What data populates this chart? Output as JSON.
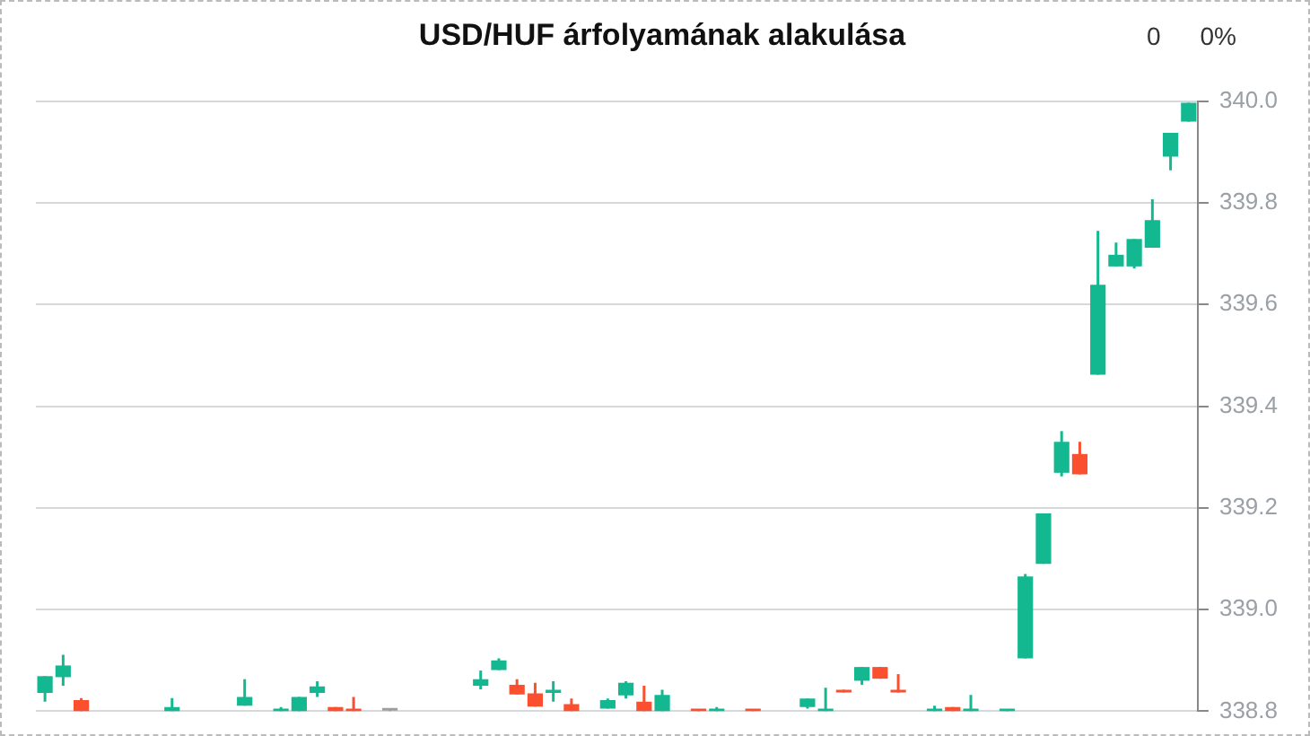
{
  "chart_data": {
    "type": "candlestick",
    "title": "USD/HUF árfolyamának alakulása",
    "annotations": [
      "0",
      "0%"
    ],
    "categories": [
      null,
      null,
      null,
      null,
      null,
      null,
      null,
      null,
      null,
      null,
      null,
      null,
      null,
      null,
      null,
      null,
      null,
      null,
      null,
      null,
      null,
      null,
      null,
      null,
      null,
      null,
      null,
      null,
      null,
      null,
      null,
      null,
      null,
      null,
      null,
      null,
      null,
      null,
      null,
      null,
      null,
      null,
      null,
      null,
      null,
      null,
      null,
      null,
      null,
      null,
      null,
      null,
      null,
      null,
      null,
      null,
      null,
      null,
      null,
      null,
      null,
      null,
      null,
      null
    ],
    "ohlc": [
      [
        338.836,
        338.869,
        338.819,
        338.869
      ],
      [
        338.867,
        338.911,
        338.85,
        338.89
      ],
      [
        338.822,
        338.826,
        338.8,
        338.8
      ],
      null,
      null,
      null,
      null,
      [
        338.8,
        338.826,
        338.8,
        338.808
      ],
      null,
      null,
      null,
      [
        338.811,
        338.863,
        338.811,
        338.828
      ],
      null,
      [
        338.8,
        338.808,
        338.8,
        338.801
      ],
      [
        338.8,
        338.828,
        338.8,
        338.828
      ],
      [
        338.836,
        338.859,
        338.828,
        338.849
      ],
      [
        338.808,
        338.808,
        338.8,
        338.8
      ],
      [
        338.805,
        338.828,
        338.8,
        338.8
      ],
      null,
      [
        338.801,
        338.806,
        338.8,
        338.801
      ],
      null,
      null,
      null,
      null,
      [
        338.85,
        338.88,
        338.843,
        338.863
      ],
      [
        338.881,
        338.904,
        338.881,
        338.9
      ],
      [
        338.852,
        338.863,
        338.833,
        338.833
      ],
      [
        338.835,
        338.856,
        338.809,
        338.809
      ],
      [
        338.836,
        338.859,
        338.819,
        338.842
      ],
      [
        338.814,
        338.825,
        338.8,
        338.8
      ],
      null,
      [
        338.805,
        338.825,
        338.805,
        338.822
      ],
      [
        338.831,
        338.859,
        338.825,
        338.856
      ],
      [
        338.819,
        338.85,
        338.8,
        338.8
      ],
      [
        338.8,
        338.842,
        338.8,
        338.832
      ],
      null,
      [
        338.803,
        338.803,
        338.8,
        338.8
      ],
      [
        338.8,
        338.808,
        338.8,
        338.801
      ],
      null,
      [
        338.803,
        338.803,
        338.8,
        338.8
      ],
      null,
      null,
      [
        338.808,
        338.825,
        338.805,
        338.825
      ],
      [
        338.8,
        338.846,
        338.8,
        338.801
      ],
      [
        338.842,
        338.842,
        338.837,
        338.837
      ],
      [
        338.86,
        338.887,
        338.852,
        338.887
      ],
      [
        338.887,
        338.887,
        338.864,
        338.864
      ],
      [
        338.842,
        338.873,
        338.837,
        338.837
      ],
      null,
      [
        338.8,
        338.811,
        338.8,
        338.801
      ],
      [
        338.808,
        338.808,
        338.8,
        338.8
      ],
      [
        338.8,
        338.832,
        338.8,
        338.801
      ],
      null,
      [
        338.8,
        338.803,
        338.8,
        338.803
      ],
      [
        338.904,
        339.07,
        338.904,
        339.065
      ],
      [
        339.09,
        339.189,
        339.09,
        339.189
      ],
      [
        339.269,
        339.351,
        339.262,
        339.33
      ],
      [
        339.306,
        339.33,
        339.266,
        339.266
      ],
      [
        339.462,
        339.745,
        339.462,
        339.639
      ],
      [
        339.675,
        339.722,
        339.675,
        339.698
      ],
      [
        339.675,
        339.729,
        339.671,
        339.729
      ],
      [
        339.712,
        339.807,
        339.712,
        339.766
      ],
      [
        339.891,
        339.938,
        339.864,
        339.938
      ],
      [
        339.96,
        339.997,
        339.96,
        339.997
      ]
    ],
    "colors": [
      "#14b890",
      "#14b890",
      "#fa5030",
      null,
      null,
      null,
      null,
      "#14b890",
      null,
      null,
      null,
      "#14b890",
      null,
      "#14b890",
      "#14b890",
      "#14b890",
      "#fa5030",
      "#fa5030",
      null,
      "#9e9e9e",
      null,
      null,
      null,
      null,
      "#14b890",
      "#14b890",
      "#fa5030",
      "#fa5030",
      "#14b890",
      "#fa5030",
      null,
      "#14b890",
      "#14b890",
      "#fa5030",
      "#14b890",
      null,
      "#fa5030",
      "#14b890",
      null,
      "#fa5030",
      null,
      null,
      "#14b890",
      "#14b890",
      "#fa5030",
      "#14b890",
      "#fa5030",
      "#fa5030",
      null,
      "#14b890",
      "#fa5030",
      "#14b890",
      null,
      "#14b890",
      "#14b890",
      "#14b890",
      "#14b890",
      "#fa5030",
      "#14b890",
      "#14b890",
      "#14b890",
      "#14b890",
      "#14b890",
      "#14b890"
    ],
    "ylim": [
      338.8,
      340.0
    ],
    "yticks": [
      {
        "value": 338.8,
        "label": "338.8"
      },
      {
        "value": 339,
        "label": "339.0"
      },
      {
        "value": 339.2,
        "label": "339.2"
      },
      {
        "value": 339.4,
        "label": "339.4"
      },
      {
        "value": 339.6,
        "label": "339.6"
      },
      {
        "value": 339.8,
        "label": "339.8"
      },
      {
        "value": 340,
        "label": "340.0"
      }
    ],
    "grid": "y",
    "tick_labels": "y"
  }
}
